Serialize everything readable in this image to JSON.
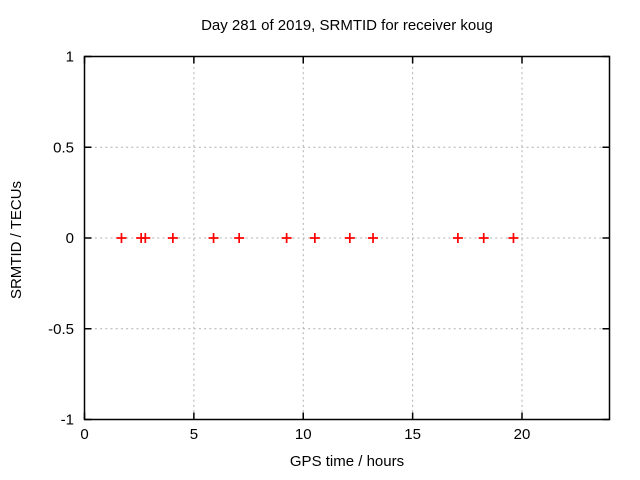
{
  "chart_data": {
    "type": "scatter",
    "title": "Day 281 of 2019, SRMTID for receiver koug",
    "xlabel": "GPS time / hours",
    "ylabel": "SRMTID / TECUs",
    "xlim": [
      0,
      24
    ],
    "ylim": [
      -1,
      1
    ],
    "xtick_values": [
      0,
      5,
      10,
      15,
      20
    ],
    "xtick_labels": [
      "0",
      "5",
      "10",
      "15",
      "20"
    ],
    "ytick_values": [
      -1,
      -0.5,
      0,
      0.5,
      1
    ],
    "ytick_labels": [
      "-1",
      "-0.5",
      "0",
      "0.5",
      "1"
    ],
    "grid": {
      "enabled": true,
      "style": "dotted",
      "x_values": [
        5,
        10,
        15,
        20
      ],
      "y_values": [
        -0.5,
        0,
        0.5
      ]
    },
    "legend": "none",
    "series": [
      {
        "name": "SRMTID",
        "marker": "plus",
        "color": "#ff0000",
        "x": [
          1.69,
          2.59,
          2.78,
          4.04,
          5.9,
          7.07,
          9.24,
          10.53,
          12.13,
          13.19,
          17.07,
          18.25,
          19.61
        ],
        "y": [
          0,
          0,
          0,
          0,
          0,
          0,
          0,
          0,
          0,
          0,
          0,
          0,
          0
        ]
      }
    ],
    "colors": {
      "background": "#ffffff",
      "border": "#000000",
      "text": "#000000",
      "grid": "#b0b0b0",
      "marker": "#ff0000"
    }
  }
}
